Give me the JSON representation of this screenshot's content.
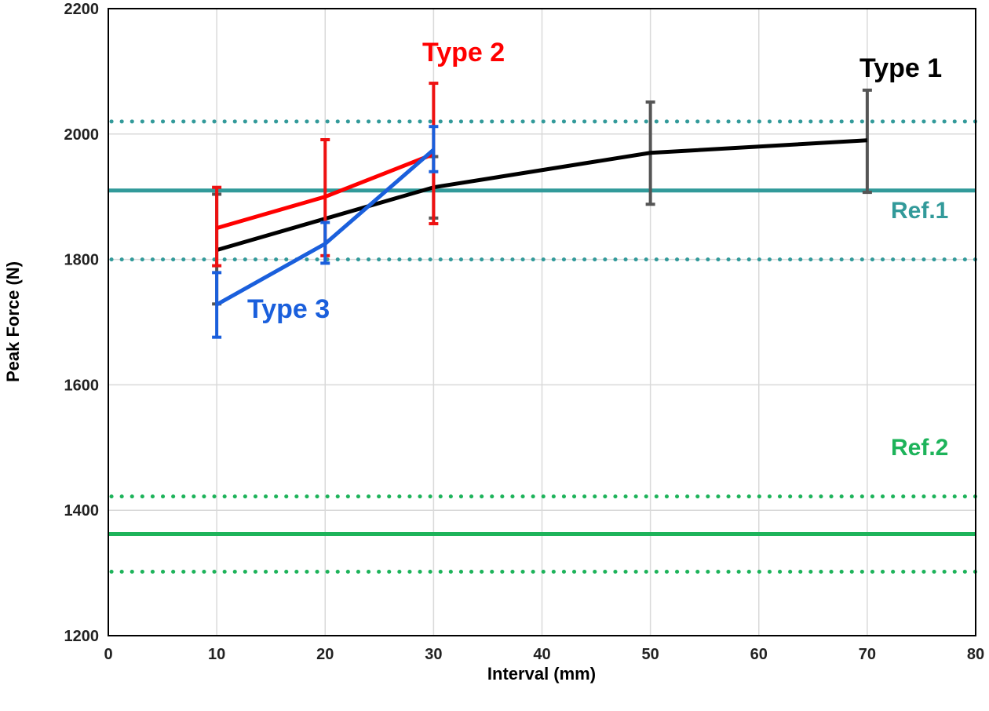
{
  "chart_data": {
    "type": "line",
    "title": "",
    "xlabel": "Interval (mm)",
    "ylabel": "Peak Force (N)",
    "xlim": [
      0,
      80
    ],
    "ylim": [
      1200,
      2200
    ],
    "xticks": [
      "0",
      "10",
      "20",
      "30",
      "40",
      "50",
      "60",
      "70",
      "80"
    ],
    "yticks": [
      "1200",
      "1400",
      "1600",
      "1800",
      "2000",
      "2200"
    ],
    "grid": true,
    "series": [
      {
        "name": "Type 1",
        "color": "#000000",
        "errcolor": "#555555",
        "x": [
          10,
          20,
          30,
          50,
          70
        ],
        "y": [
          1815,
          1865,
          1915,
          1970,
          1990
        ],
        "err_low": [
          1729,
          null,
          1866,
          1888,
          1907
        ],
        "err_high": [
          1904,
          null,
          1964,
          2051,
          2070
        ]
      },
      {
        "name": "Type 2",
        "color": "#ff0000",
        "errcolor": "#ee1111",
        "x": [
          10,
          20,
          30
        ],
        "y": [
          1850,
          1900,
          1968
        ],
        "err_low": [
          1790,
          1806,
          1857
        ],
        "err_high": [
          1915,
          1991,
          2081
        ]
      },
      {
        "name": "Type 3",
        "color": "#1a5fdc",
        "errcolor": "#1a5fdc",
        "x": [
          10,
          20,
          30
        ],
        "y": [
          1728,
          1825,
          1975
        ],
        "err_low": [
          1676,
          1794,
          1940
        ],
        "err_high": [
          1779,
          1859,
          2012
        ]
      }
    ],
    "reference_lines": [
      {
        "name": "Ref.1",
        "color": "#329a9a",
        "value": 1910,
        "band": [
          1800,
          2020
        ]
      },
      {
        "name": "Ref.2",
        "color": "#1db35a",
        "value": 1362,
        "band": [
          1302,
          1422
        ]
      }
    ],
    "annotations": [
      "Type 1",
      "Type 2",
      "Type 3",
      "Ref.1",
      "Ref.2"
    ]
  }
}
